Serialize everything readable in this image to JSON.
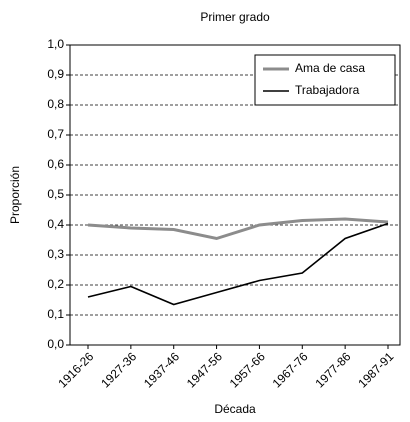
{
  "chart_data": {
    "type": "line",
    "title": "Primer grado",
    "x_label": "Década",
    "y_label": "Proporción",
    "categories": [
      "1916-26",
      "1927-36",
      "1937-46",
      "1947-56",
      "1957-66",
      "1967-76",
      "1977-86",
      "1987-91"
    ],
    "series": [
      {
        "name": "Ama de casa",
        "color": "#8c8c8c",
        "values": [
          0.4,
          0.39,
          0.385,
          0.355,
          0.4,
          0.415,
          0.42,
          0.41
        ]
      },
      {
        "name": "Trabajadora",
        "color": "#000000",
        "values": [
          0.16,
          0.195,
          0.135,
          0.175,
          0.215,
          0.24,
          0.355,
          0.405
        ]
      }
    ],
    "ylim": [
      0,
      1
    ],
    "yticks": [
      {
        "value": 0,
        "label": "0,0"
      },
      {
        "value": 0.1,
        "label": "0,1"
      },
      {
        "value": 0.2,
        "label": "0,2"
      },
      {
        "value": 0.3,
        "label": "0,3"
      },
      {
        "value": 0.4,
        "label": "0,4"
      },
      {
        "value": 0.5,
        "label": "0,5"
      },
      {
        "value": 0.6,
        "label": "0,6"
      },
      {
        "value": 0.7,
        "label": "0,7"
      },
      {
        "value": 0.8,
        "label": "0,8"
      },
      {
        "value": 0.9,
        "label": "0,9"
      },
      {
        "value": 1,
        "label": "1,0"
      }
    ],
    "grid": true,
    "legend": "top-right"
  }
}
